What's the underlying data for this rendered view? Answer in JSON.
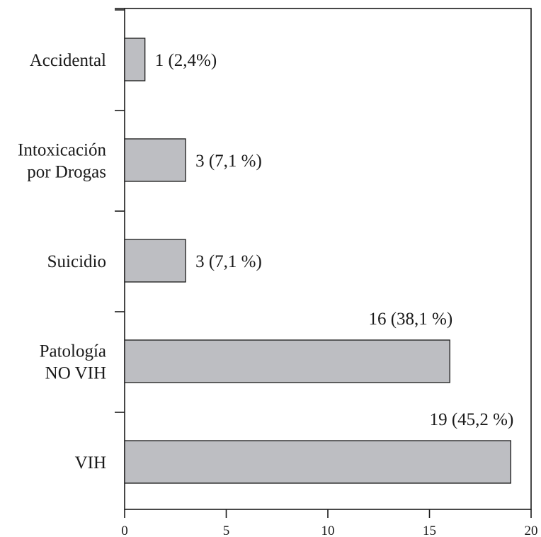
{
  "chart_data": {
    "type": "bar",
    "orientation": "horizontal",
    "categories": [
      [
        "Accidental"
      ],
      [
        "Intoxicación",
        "por Drogas"
      ],
      [
        "Suicidio"
      ],
      [
        "Patología",
        "NO VIH"
      ],
      [
        "VIH"
      ]
    ],
    "values": [
      1,
      3,
      3,
      16,
      19
    ],
    "data_labels": [
      "1 (2,4%)",
      "3 (7,1 %)",
      "3 (7,1 %)",
      "16 (38,1 %)",
      "19 (45,2 %)"
    ],
    "xlim": [
      0,
      20
    ],
    "xticks": [
      0,
      5,
      10,
      15,
      20
    ],
    "xtick_labels": [
      "0",
      "5",
      "10",
      "15",
      "20"
    ],
    "title": "",
    "xlabel": "",
    "ylabel": "",
    "grid": false,
    "legend": "none",
    "colors": {
      "bar_fill": "#bdbec2",
      "bar_stroke": "#1a1a1a",
      "axis": "#1a1a1a",
      "text": "#1a1a1a"
    }
  }
}
